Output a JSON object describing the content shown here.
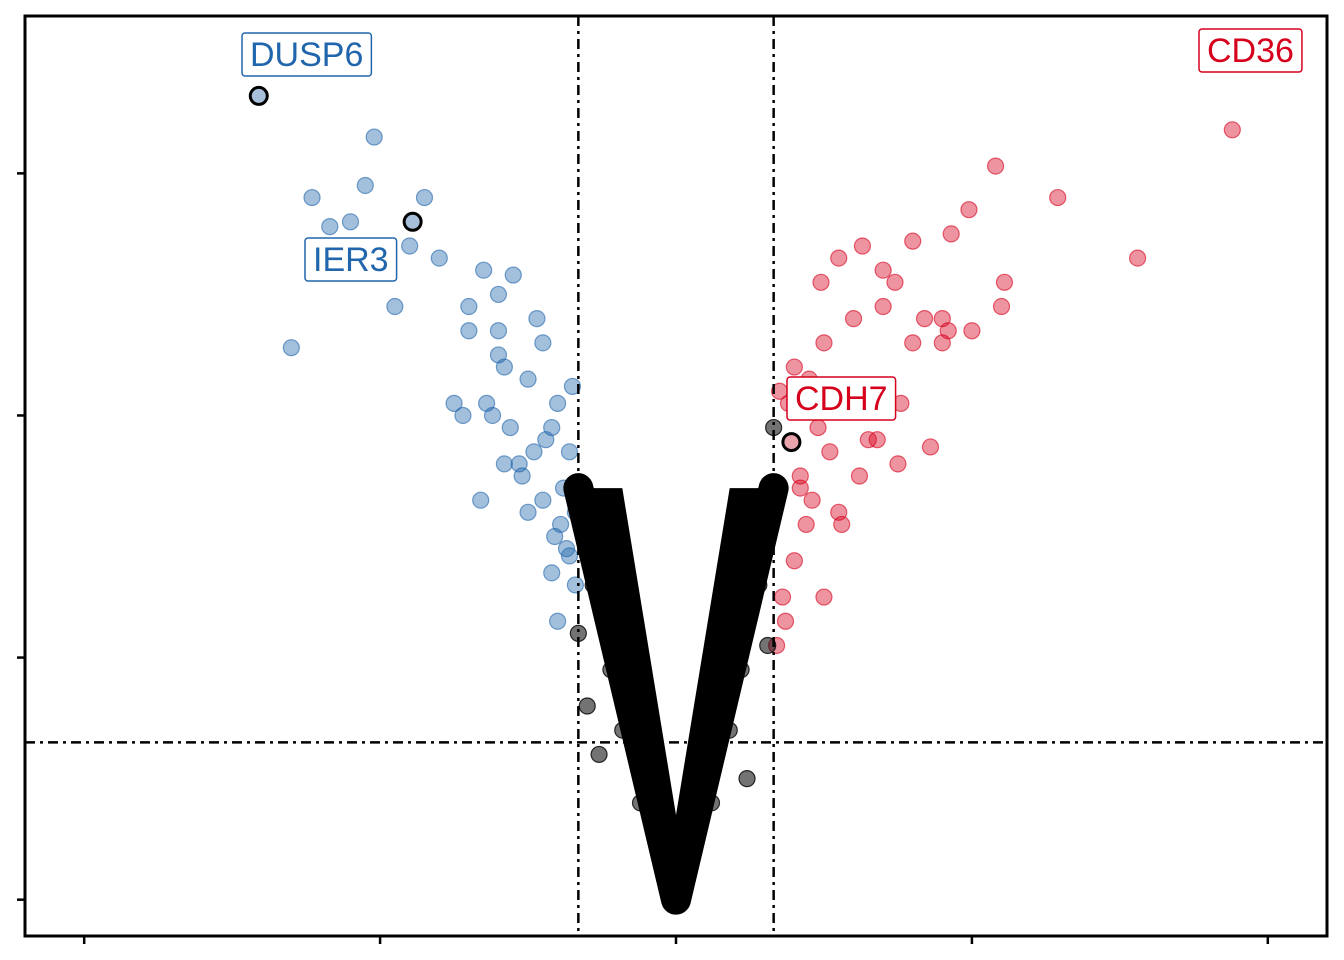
{
  "chart_data": {
    "type": "scatter",
    "title": "",
    "xlabel": "",
    "ylabel": "",
    "xlim": [
      -2.2,
      2.2
    ],
    "ylim": [
      -0.15,
      3.65
    ],
    "x_ticks": [
      -2,
      -1,
      0,
      1,
      2
    ],
    "y_ticks": [
      0,
      1,
      2,
      3
    ],
    "tick_labels_visible": false,
    "grid": false,
    "legend": "none",
    "fold_change_thresholds": [
      -0.33,
      0.33
    ],
    "significance_threshold": 0.65,
    "colors": {
      "down": "#2166ac",
      "up": "#d6001c",
      "not_significant": "#000000",
      "highlight_fill_down": "#a7bfd9",
      "highlight_fill_up": "#e8a3ad"
    },
    "series": [
      {
        "name": "down",
        "x": [
          -1.02,
          -1.3,
          -0.95,
          -1.23,
          -1.17,
          -0.85,
          -0.9,
          -1.05,
          -1.1,
          -0.8,
          -0.65,
          -0.55,
          -0.6,
          -0.7,
          -0.75,
          -0.58,
          -0.62,
          -0.5,
          -0.45,
          -0.4,
          -0.35,
          -0.42,
          -0.48,
          -0.38,
          -0.52,
          -0.66,
          -0.72,
          -0.56,
          -0.44,
          -0.36,
          -0.5,
          -0.64,
          -0.39,
          -0.6,
          -0.47,
          -0.41,
          -0.37,
          -0.53,
          -0.45,
          -0.42,
          -0.4,
          -0.36,
          -0.6,
          -0.58,
          -0.34,
          -0.34,
          -0.7
        ],
        "y": [
          3.15,
          2.28,
          2.45,
          2.9,
          2.78,
          2.9,
          2.7,
          2.95,
          2.8,
          2.65,
          2.6,
          2.58,
          2.35,
          2.35,
          2.05,
          2.2,
          2.0,
          2.15,
          2.3,
          2.05,
          2.12,
          1.95,
          1.85,
          1.7,
          1.75,
          1.65,
          2.0,
          1.95,
          1.9,
          1.85,
          1.6,
          2.05,
          1.55,
          2.25,
          2.4,
          1.5,
          1.45,
          1.8,
          1.65,
          1.35,
          1.15,
          1.42,
          2.5,
          1.8,
          1.6,
          1.3,
          2.45
        ]
      },
      {
        "name": "up",
        "x": [
          1.88,
          1.08,
          1.29,
          1.56,
          1.11,
          0.93,
          0.63,
          0.55,
          0.8,
          0.74,
          0.99,
          1.1,
          0.9,
          0.7,
          0.6,
          0.5,
          0.45,
          0.4,
          0.38,
          0.35,
          0.42,
          0.48,
          0.52,
          0.55,
          0.65,
          0.75,
          0.86,
          0.92,
          0.6,
          0.44,
          0.4,
          0.36,
          0.68,
          0.56,
          0.46,
          0.5,
          0.8,
          0.9,
          0.62,
          0.76,
          0.7,
          0.84,
          1.0,
          0.42,
          0.37,
          0.34,
          0.49,
          0.58
        ],
        "y": [
          3.18,
          3.03,
          2.9,
          2.65,
          2.55,
          2.75,
          2.7,
          2.65,
          2.72,
          2.55,
          2.85,
          2.45,
          2.4,
          2.45,
          2.4,
          2.3,
          2.15,
          2.2,
          2.05,
          2.1,
          1.75,
          1.95,
          1.85,
          1.6,
          1.9,
          1.8,
          1.87,
          2.35,
          2.05,
          1.55,
          1.4,
          1.25,
          1.9,
          1.55,
          1.65,
          1.25,
          2.3,
          2.3,
          1.75,
          2.05,
          2.6,
          2.4,
          2.35,
          1.7,
          1.15,
          1.05,
          2.55,
          2.1
        ]
      },
      {
        "name": "not significant",
        "x": [
          -0.33,
          -0.3,
          -0.25,
          -0.2,
          -0.15,
          -0.1,
          -0.05,
          0.0,
          0.05,
          0.1,
          0.15,
          0.2,
          0.25,
          0.3,
          0.33,
          -0.28,
          -0.22,
          -0.18,
          -0.12,
          -0.08,
          0.08,
          0.12,
          0.18,
          0.22,
          0.28,
          -0.3,
          0.31,
          0.24,
          -0.26
        ],
        "y": [
          1.1,
          1.6,
          1.25,
          1.0,
          0.75,
          0.5,
          0.25,
          0.0,
          0.25,
          0.5,
          0.75,
          1.0,
          1.25,
          1.5,
          1.95,
          1.3,
          0.95,
          0.7,
          0.4,
          0.3,
          0.3,
          0.4,
          0.7,
          0.95,
          1.3,
          0.8,
          1.05,
          0.5,
          0.6
        ]
      }
    ],
    "annotations": [
      {
        "text": "DUSP6",
        "x": -1.41,
        "y": 3.32,
        "group": "down"
      },
      {
        "text": "IER3",
        "x": -0.89,
        "y": 2.8,
        "group": "down"
      },
      {
        "text": "CDH7",
        "x": 0.39,
        "y": 1.89,
        "group": "up"
      },
      {
        "text": "CD36",
        "x": null,
        "y": null,
        "group": "up"
      }
    ]
  }
}
